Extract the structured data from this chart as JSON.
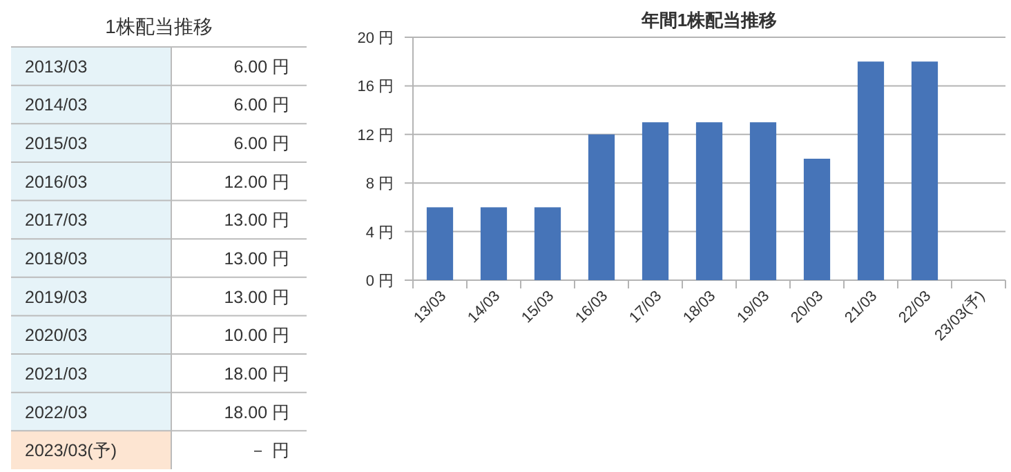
{
  "chart_data": [
    {
      "type": "other",
      "title": "1株配当推移",
      "annotations": [
        "2013/03",
        "6.00 円",
        "2014/03",
        "6.00 円",
        "2015/03",
        "6.00 円",
        "2016/03",
        "12.00 円",
        "2017/03",
        "13.00 円",
        "2018/03",
        "13.00 円",
        "2019/03",
        "13.00 円",
        "2020/03",
        "10.00 円",
        "2021/03",
        "18.00 円",
        "2022/03",
        "18.00 円",
        "2023/03(予)",
        "－ 円"
      ]
    },
    {
      "type": "bar",
      "title": "年間1株配当推移",
      "categories": [
        "13/03",
        "14/03",
        "15/03",
        "16/03",
        "17/03",
        "18/03",
        "19/03",
        "20/03",
        "21/03",
        "22/03",
        "23/03(予)"
      ],
      "values": [
        6,
        6,
        6,
        12,
        13,
        13,
        13,
        10,
        18,
        18,
        null
      ],
      "color": "#4674b8",
      "ylim": [
        0,
        20
      ],
      "yticks": [
        {
          "value": 0,
          "label": "0 円"
        },
        {
          "value": 4,
          "label": "4 円"
        },
        {
          "value": 8,
          "label": "8 円"
        },
        {
          "value": 12,
          "label": "12 円"
        },
        {
          "value": 16,
          "label": "16 円"
        },
        {
          "value": 20,
          "label": "20 円"
        }
      ],
      "grid": "y"
    }
  ]
}
